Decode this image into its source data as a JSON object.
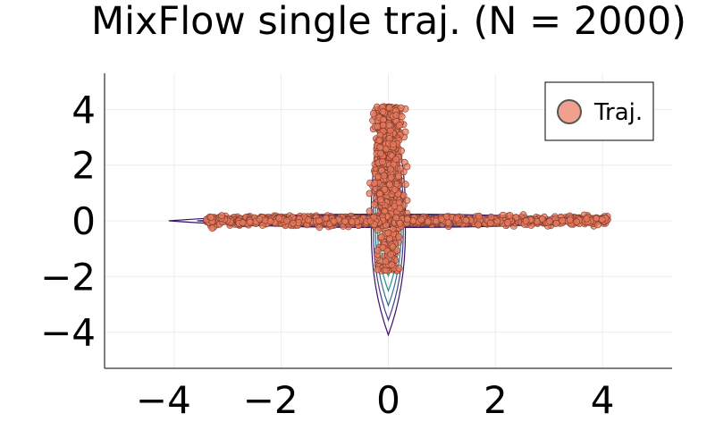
{
  "chart_data": {
    "type": "scatter",
    "title": "MixFlow single traj. (N = 2000)",
    "xlabel": "",
    "ylabel": "",
    "xlim": [
      -5.3,
      5.3
    ],
    "ylim": [
      -5.3,
      5.3
    ],
    "xticks": [
      -4,
      -2,
      0,
      2,
      4
    ],
    "yticks": [
      -4,
      -2,
      0,
      2,
      4
    ],
    "xtick_labels": [
      "−4",
      "−2",
      "0",
      "2",
      "4"
    ],
    "ytick_labels": [
      "−4",
      "−2",
      "0",
      "2",
      "4"
    ],
    "grid": true,
    "legend": {
      "position": "top-right",
      "entries": [
        "Traj."
      ]
    },
    "series": [
      {
        "name": "Traj.",
        "color": "#e8795d",
        "edge_color": "#7a3a2a",
        "n_points": 2000,
        "clusters": [
          {
            "region": "vertical-upper",
            "x_range": [
              -0.35,
              0.35
            ],
            "y_range": [
              0.0,
              4.1
            ],
            "count": 900
          },
          {
            "region": "vertical-lower",
            "x_range": [
              -0.2,
              0.2
            ],
            "y_range": [
              -1.8,
              0.0
            ],
            "count": 120
          },
          {
            "region": "horizontal-left",
            "x_range": [
              -3.4,
              -0.1
            ],
            "y_range": [
              -0.3,
              0.3
            ],
            "count": 500
          },
          {
            "region": "horizontal-right",
            "x_range": [
              0.1,
              4.1
            ],
            "y_range": [
              -0.3,
              0.3
            ],
            "count": 480
          }
        ]
      }
    ],
    "contours": {
      "type": "cross-shaped density",
      "colormap": [
        "#3b0f6f",
        "#433e85",
        "#2c728e",
        "#21918c",
        "#28ae80",
        "#5ec962",
        "#addc30"
      ],
      "arms": [
        {
          "direction": "left",
          "extent": 4.1
        },
        {
          "direction": "right",
          "extent": 4.1
        },
        {
          "direction": "up",
          "extent": 4.1
        },
        {
          "direction": "down",
          "extent": 4.1
        }
      ]
    }
  }
}
